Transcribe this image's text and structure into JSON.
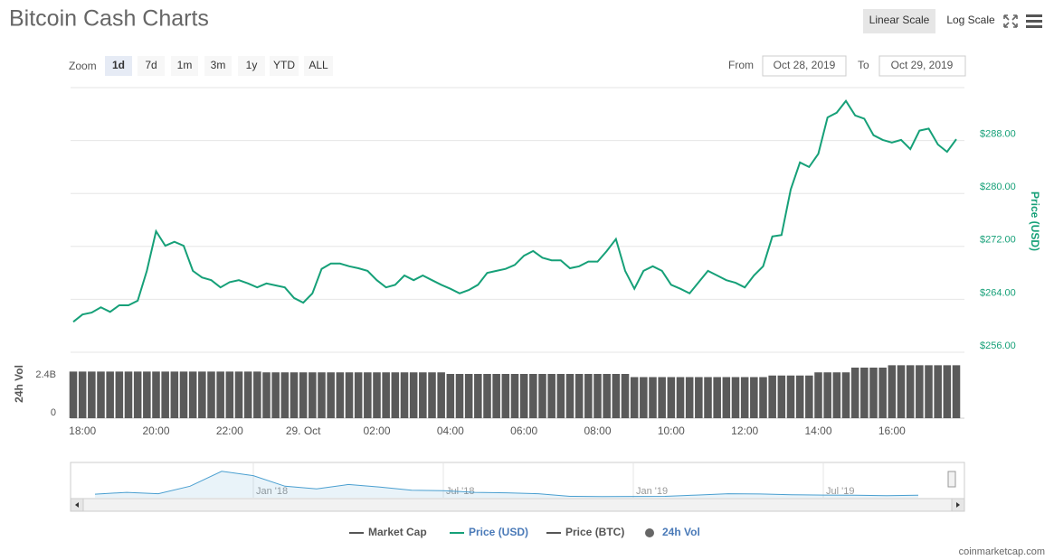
{
  "header": {
    "title": "Bitcoin Cash Charts",
    "scale_buttons": [
      {
        "label": "Linear Scale",
        "active": true
      },
      {
        "label": "Log Scale",
        "active": false
      }
    ]
  },
  "toolbar": {
    "zoom_label": "Zoom",
    "zoom_buttons": [
      {
        "label": "1d",
        "active": true
      },
      {
        "label": "7d",
        "active": false
      },
      {
        "label": "1m",
        "active": false
      },
      {
        "label": "3m",
        "active": false
      },
      {
        "label": "1y",
        "active": false
      },
      {
        "label": "YTD",
        "active": false
      },
      {
        "label": "ALL",
        "active": false
      }
    ],
    "from_label": "From",
    "from_date": "Oct 28, 2019",
    "to_label": "To",
    "to_date": "Oct 29, 2019"
  },
  "chart_data": [
    {
      "type": "line",
      "y_axis_label": "Price (USD)",
      "x": [
        null,
        "18:00",
        null,
        null,
        null,
        null,
        null,
        null,
        null,
        "20:00",
        null,
        null,
        null,
        null,
        null,
        null,
        null,
        "22:00",
        null,
        null,
        null,
        null,
        null,
        null,
        null,
        "29. Oct",
        null,
        null,
        null,
        null,
        null,
        null,
        null,
        "02:00",
        null,
        null,
        null,
        null,
        null,
        null,
        null,
        "04:00",
        null,
        null,
        null,
        null,
        null,
        null,
        null,
        "06:00",
        null,
        null,
        null,
        null,
        null,
        null,
        null,
        "08:00",
        null,
        null,
        null,
        null,
        null,
        null,
        null,
        "10:00",
        null,
        null,
        null,
        null,
        null,
        null,
        null,
        "12:00",
        null,
        null,
        null,
        null,
        null,
        null,
        null,
        "14:00",
        null,
        null,
        null,
        null,
        null,
        null,
        null,
        "16:00",
        null,
        null,
        null,
        null,
        null,
        null,
        null
      ],
      "series": [
        {
          "name": "Price (USD)",
          "color": "#16a078",
          "values": [
            260.6,
            261.7,
            262.0,
            262.8,
            262.1,
            263.1,
            263.1,
            263.8,
            268.3,
            274.3,
            272.1,
            272.7,
            272.1,
            268.3,
            267.3,
            266.9,
            265.8,
            266.6,
            266.9,
            266.4,
            265.8,
            266.4,
            266.1,
            265.8,
            264.2,
            263.5,
            264.9,
            268.6,
            269.4,
            269.4,
            269.0,
            268.7,
            268.3,
            266.9,
            265.8,
            266.2,
            267.6,
            266.9,
            267.6,
            266.9,
            266.2,
            265.6,
            264.9,
            265.4,
            266.2,
            268.0,
            268.3,
            268.6,
            269.2,
            270.6,
            271.3,
            270.3,
            269.9,
            269.9,
            268.7,
            269.0,
            269.7,
            269.7,
            271.3,
            273.1,
            268.3,
            265.6,
            268.3,
            269.0,
            268.3,
            266.2,
            265.6,
            264.9,
            266.6,
            268.3,
            267.6,
            266.9,
            266.5,
            265.8,
            267.6,
            269.0,
            273.5,
            273.7,
            280.6,
            284.7,
            284.0,
            286.0,
            291.5,
            292.2,
            294.0,
            291.8,
            291.3,
            288.8,
            288.1,
            287.7,
            288.1,
            286.7,
            289.5,
            289.8,
            287.4,
            286.3,
            288.2
          ]
        }
      ],
      "ylim": [
        256,
        296
      ],
      "yticks": [
        {
          "value": 256,
          "label": "$256.00"
        },
        {
          "value": 264,
          "label": "$264.00"
        },
        {
          "value": 272,
          "label": "$272.00"
        },
        {
          "value": 280,
          "label": "$280.00"
        },
        {
          "value": 288,
          "label": "$288.00"
        }
      ],
      "grid": true
    },
    {
      "type": "bar",
      "y_axis_label": "24h Vol",
      "color": "#5a5a5a",
      "values": [
        2950000000,
        2950000000,
        2950000000,
        2950000000,
        2950000000,
        2950000000,
        2950000000,
        2950000000,
        2950000000,
        2950000000,
        2950000000,
        2950000000,
        2950000000,
        2950000000,
        2950000000,
        2950000000,
        2950000000,
        2950000000,
        2950000000,
        2950000000,
        2950000000,
        2900000000,
        2900000000,
        2900000000,
        2900000000,
        2900000000,
        2900000000,
        2900000000,
        2900000000,
        2900000000,
        2900000000,
        2900000000,
        2900000000,
        2900000000,
        2900000000,
        2900000000,
        2900000000,
        2900000000,
        2900000000,
        2900000000,
        2900000000,
        2800000000,
        2800000000,
        2800000000,
        2800000000,
        2800000000,
        2800000000,
        2800000000,
        2800000000,
        2800000000,
        2800000000,
        2800000000,
        2800000000,
        2800000000,
        2800000000,
        2800000000,
        2800000000,
        2800000000,
        2800000000,
        2800000000,
        2800000000,
        2600000000,
        2600000000,
        2600000000,
        2600000000,
        2600000000,
        2600000000,
        2600000000,
        2600000000,
        2600000000,
        2600000000,
        2600000000,
        2600000000,
        2600000000,
        2600000000,
        2600000000,
        2700000000,
        2700000000,
        2700000000,
        2700000000,
        2700000000,
        2900000000,
        2900000000,
        2900000000,
        2900000000,
        3200000000,
        3200000000,
        3200000000,
        3200000000,
        3350000000,
        3350000000,
        3350000000,
        3350000000,
        3350000000,
        3350000000,
        3350000000,
        3350000000
      ],
      "ylim": [
        0,
        3600000000
      ],
      "yticks": [
        0,
        {
          "value": 2400000000,
          "label": "2.4B"
        }
      ]
    },
    {
      "type": "area",
      "x": [
        null,
        null,
        null,
        null,
        null,
        "Jan '18",
        null,
        null,
        null,
        null,
        null,
        "Jul '18",
        null,
        null,
        null,
        null,
        null,
        "Jan '19",
        null,
        null,
        null,
        null,
        null,
        "Jul '19",
        null,
        null,
        null
      ],
      "color": "#4a9fd0",
      "values": [
        400,
        600,
        450,
        1300,
        3000,
        2500,
        1300,
        1000,
        1500,
        1200,
        850,
        800,
        600,
        550,
        450,
        150,
        120,
        140,
        150,
        300,
        450,
        420,
        330,
        300,
        280,
        230,
        290
      ],
      "ylim": [
        0,
        4000
      ]
    }
  ],
  "legend": [
    {
      "name": "Market Cap",
      "color": "#555555",
      "marker": "line",
      "active": false
    },
    {
      "name": "Price (USD)",
      "color": "#16a078",
      "marker": "line",
      "active": true
    },
    {
      "name": "Price (BTC)",
      "color": "#555555",
      "marker": "line",
      "active": false
    },
    {
      "name": "24h Vol",
      "color": "#666666",
      "marker": "circle",
      "active": true
    }
  ],
  "footer": "coinmarketcap.com"
}
